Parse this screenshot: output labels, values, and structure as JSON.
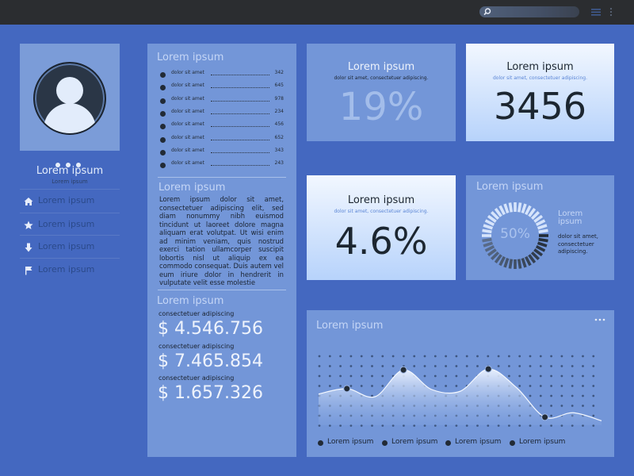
{
  "search": {
    "icon": "search-icon"
  },
  "topbar_icons": [
    "menu-icon",
    "more-vert-icon"
  ],
  "profile": {
    "name": "Lorem ipsum",
    "subtitle": "Lorem ipsum",
    "nav": [
      {
        "label": "Lorem ipsum",
        "icon": "home-icon"
      },
      {
        "label": "Lorem ipsum",
        "icon": "star-icon"
      },
      {
        "label": "Lorem ipsum",
        "icon": "download-icon"
      },
      {
        "label": "Lorem ipsum",
        "icon": "flag-icon"
      }
    ]
  },
  "list_panel": {
    "title": "Lorem ipsum",
    "rows": [
      {
        "label": "dolor sit amet",
        "value": "342"
      },
      {
        "label": "dolor sit amet",
        "value": "645"
      },
      {
        "label": "dolor sit amet",
        "value": "978"
      },
      {
        "label": "dolor sit amet",
        "value": "234"
      },
      {
        "label": "dolor sit amet",
        "value": "456"
      },
      {
        "label": "dolor sit amet",
        "value": "652"
      },
      {
        "label": "dolor sit amet",
        "value": "343"
      },
      {
        "label": "dolor sit amet",
        "value": "243"
      }
    ]
  },
  "text_panel": {
    "title": "Lorem ipsum",
    "body": "Lorem ipsum dolor sit amet, consectetuer adipiscing elit, sed diam nonummy nibh euismod tincidunt ut laoreet dolore magna aliquam erat volutpat. Ut wisi enim ad minim veniam, quis nostrud exerci tation ullamcorper suscipit lobortis nisl ut aliquip ex ea commodo consequat. Duis autem vel eum iriure dolor in hendrerit in vulputate velit esse molestie"
  },
  "money_panel": {
    "title": "Lorem ipsum",
    "items": [
      {
        "label": "consectetuer adipiscing",
        "value": "$ 4.546.756"
      },
      {
        "label": "consectetuer adipiscing",
        "value": "$ 7.465.854"
      },
      {
        "label": "consectetuer adipiscing",
        "value": "$ 1.657.326"
      }
    ]
  },
  "stats": [
    {
      "title": "Lorem ipsum",
      "subtitle": "dolor sit amet, consectetuer adipiscing.",
      "value": "19%"
    },
    {
      "title": "Lorem ipsum",
      "subtitle": "dolor sit amet, consectetuer adipiscing.",
      "value": "3456"
    },
    {
      "title": "Lorem ipsum",
      "subtitle": "dolor sit amet, consectetuer adipiscing.",
      "value": "4.6%"
    }
  ],
  "gauge": {
    "title": "Lorem ipsum",
    "value_label": "50%",
    "fraction": 0.5,
    "side_title": "Lorem ipsum",
    "side_text": "dolor sit amet, consectetuer adipiscing."
  },
  "chart_data": {
    "type": "area",
    "title": "Lorem ipsum",
    "x": [
      0,
      1,
      2,
      3,
      4,
      5,
      6,
      7,
      8,
      9,
      10
    ],
    "values": [
      3.5,
      4.1,
      3.2,
      6.2,
      4.0,
      3.8,
      6.3,
      4.2,
      0.9,
      1.4,
      0.5
    ],
    "markers": [
      1,
      3,
      6,
      8
    ],
    "ylim": [
      0,
      8
    ],
    "grid": "dotted",
    "legend": [
      "Lorem ipsum",
      "Lorem ipsum",
      "Lorem ipsum",
      "Lorem ipsum"
    ]
  },
  "colors": {
    "background": "#4468c0",
    "panel": "#7396d8",
    "panel_light": "#d8e7fc",
    "dark": "#222b36",
    "light_text": "#c5d6f6"
  }
}
